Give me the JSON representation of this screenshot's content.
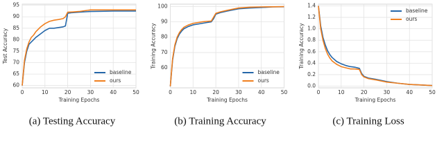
{
  "chart_data": [
    {
      "type": "line",
      "caption": "(a) Testing Accuracy",
      "xlabel": "Training Epochs",
      "ylabel": "Test Accuracy",
      "x": [
        0,
        1,
        2,
        3,
        4,
        5,
        6,
        8,
        10,
        12,
        14,
        16,
        18,
        19,
        20,
        22,
        25,
        30,
        35,
        40,
        45,
        50
      ],
      "series": [
        {
          "name": "baseline",
          "color": "#2466a8",
          "values": [
            60,
            70,
            75,
            78,
            79,
            80,
            81,
            82.5,
            84,
            85,
            85,
            85.3,
            85.6,
            86,
            91.5,
            91.8,
            92,
            92.3,
            92.4,
            92.5,
            92.5,
            92.5
          ]
        },
        {
          "name": "ours",
          "color": "#f07f1e",
          "values": [
            60,
            71,
            76,
            79,
            81,
            82,
            83.5,
            85.5,
            87,
            88,
            88.5,
            88.8,
            89.2,
            90,
            92,
            92.1,
            92.3,
            93,
            93,
            93,
            93,
            93
          ]
        }
      ],
      "xlim": [
        0,
        50
      ],
      "xticks": [
        0,
        10,
        20,
        30,
        40,
        50
      ],
      "ylim": [
        59,
        95.5
      ],
      "yticks": [
        60,
        65,
        70,
        75,
        80,
        85,
        90,
        95
      ],
      "grid": true,
      "legend": "lower-right"
    },
    {
      "type": "line",
      "caption": "(b) Training Accuracy",
      "xlabel": "Training Epochs",
      "ylabel": "Training Accuracy",
      "x": [
        0,
        1,
        2,
        3,
        4,
        5,
        6,
        8,
        10,
        12,
        14,
        16,
        18,
        19,
        20,
        22,
        25,
        30,
        35,
        40,
        45,
        50
      ],
      "series": [
        {
          "name": "baseline",
          "color": "#2466a8",
          "values": [
            48,
            65,
            74,
            79,
            82,
            84,
            85.5,
            87,
            88,
            88.5,
            89,
            89.5,
            90,
            92,
            95,
            96,
            97,
            98.5,
            99,
            99.3,
            99.7,
            99.8
          ]
        },
        {
          "name": "ours",
          "color": "#f07f1e",
          "values": [
            48,
            66,
            75,
            80,
            83,
            85,
            86.5,
            88,
            89,
            89.5,
            90,
            90.3,
            90.5,
            93,
            95.5,
            96.5,
            97.5,
            99,
            99.5,
            99.7,
            99.8,
            99.9
          ]
        }
      ],
      "xlim": [
        0,
        50
      ],
      "xticks": [
        0,
        10,
        20,
        30,
        40,
        50
      ],
      "ylim": [
        47,
        101.5
      ],
      "yticks": [
        60,
        70,
        80,
        90,
        100
      ],
      "grid": true,
      "legend": "lower-right"
    },
    {
      "type": "line",
      "caption": "(c) Training Loss",
      "xlabel": "Training Epochs",
      "ylabel": "Training Accuracy",
      "x": [
        0,
        1,
        2,
        3,
        4,
        5,
        6,
        8,
        10,
        12,
        14,
        16,
        18,
        19,
        20,
        22,
        25,
        30,
        35,
        40,
        45,
        50
      ],
      "series": [
        {
          "name": "baseline",
          "color": "#2466a8",
          "values": [
            1.4,
            1.05,
            0.85,
            0.72,
            0.62,
            0.55,
            0.5,
            0.43,
            0.39,
            0.36,
            0.34,
            0.33,
            0.31,
            0.22,
            0.17,
            0.14,
            0.12,
            0.08,
            0.05,
            0.03,
            0.02,
            0.01
          ]
        },
        {
          "name": "ours",
          "color": "#f07f1e",
          "values": [
            1.4,
            1.0,
            0.8,
            0.66,
            0.56,
            0.49,
            0.44,
            0.38,
            0.34,
            0.32,
            0.3,
            0.3,
            0.29,
            0.2,
            0.16,
            0.13,
            0.11,
            0.07,
            0.05,
            0.03,
            0.02,
            0.01
          ]
        }
      ],
      "xlim": [
        0,
        50
      ],
      "xticks": [
        0,
        10,
        20,
        30,
        40,
        50
      ],
      "ylim": [
        -0.03,
        1.43
      ],
      "yticks": [
        {
          "value": 0,
          "label": "0.0"
        },
        {
          "value": 0.2,
          "label": "0.2"
        },
        {
          "value": 0.4,
          "label": "0.4"
        },
        {
          "value": 0.6,
          "label": "0.6"
        },
        {
          "value": 0.8,
          "label": "0.8"
        },
        {
          "value": 1,
          "label": "1.0"
        },
        {
          "value": 1.2,
          "label": "1.2"
        },
        {
          "value": 1.4,
          "label": "1.4"
        }
      ],
      "grid": true,
      "legend": "upper-right"
    }
  ]
}
